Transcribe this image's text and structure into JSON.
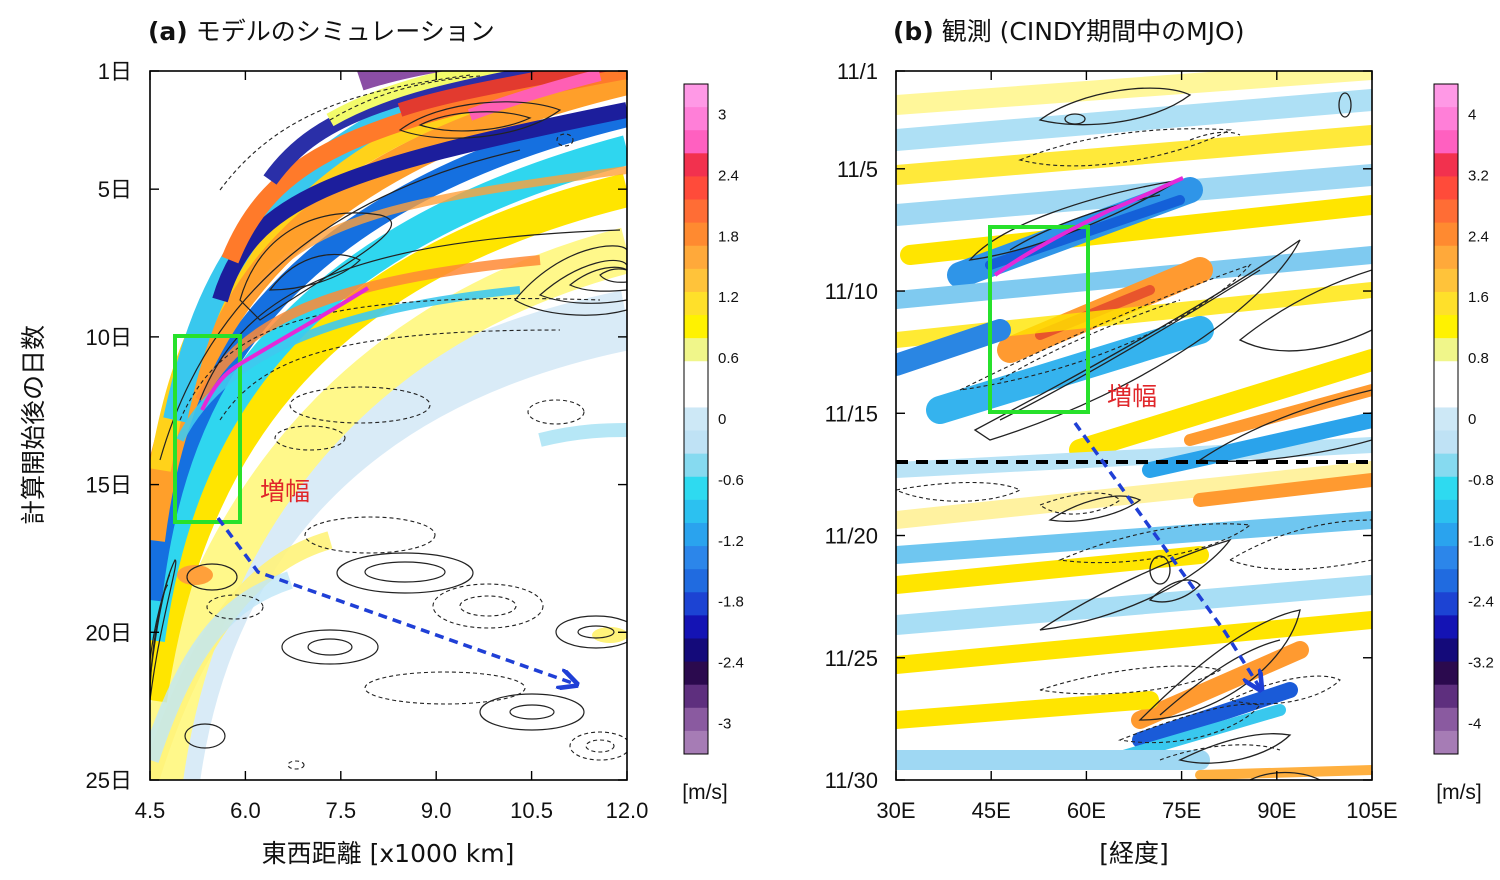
{
  "chart_data": [
    {
      "type": "heatmap",
      "panel": "(a)",
      "title": "モデルのシミュレーション",
      "xlabel": "東西距離 [x1000 km]",
      "ylabel": "計算開始後の日数",
      "xlim": [
        4.5,
        12.0
      ],
      "ylim": [
        1,
        25
      ],
      "x_ticks": [
        "4.5",
        "6.0",
        "7.5",
        "9.0",
        "10.5",
        "12.0"
      ],
      "x_tick_values": [
        4.5,
        6.0,
        7.5,
        9.0,
        10.5,
        12.0
      ],
      "y_ticks": [
        "1日",
        "5日",
        "10日",
        "15日",
        "20日",
        "25日"
      ],
      "y_tick_values": [
        1,
        5,
        10,
        15,
        20,
        25
      ],
      "colorbar": {
        "unit": "[m/s]",
        "range": [
          -3.3,
          3.3
        ],
        "tick_labels": [
          "3",
          "2.4",
          "1.8",
          "1.2",
          "0.6",
          "0",
          "-0.6",
          "-1.2",
          "-1.8",
          "-2.4",
          "-3"
        ],
        "tick_values": [
          3,
          2.4,
          1.8,
          1.2,
          0.6,
          0,
          -0.6,
          -1.2,
          -1.8,
          -2.4,
          -3
        ]
      },
      "annotation": "増幅",
      "amplification_box": {
        "x": [
          4.9,
          5.95
        ],
        "y": [
          10,
          16.2
        ]
      },
      "magenta_line": [
        [
          5.35,
          12.6
        ],
        [
          5.75,
          11.3
        ],
        [
          6.9,
          9.8
        ],
        [
          7.95,
          8.5
        ]
      ],
      "arrow": [
        [
          5.95,
          16.1
        ],
        [
          6.35,
          18.2
        ],
        [
          11.4,
          21.7
        ]
      ]
    },
    {
      "type": "heatmap",
      "panel": "(b)",
      "title": "観測 (CINDY期間中のMJO)",
      "xlabel": "[経度]",
      "ylabel": "",
      "xlim": [
        30,
        105
      ],
      "ylim": [
        1,
        30
      ],
      "x_ticks": [
        "30E",
        "45E",
        "60E",
        "75E",
        "90E",
        "105E"
      ],
      "x_tick_values": [
        30,
        45,
        60,
        75,
        90,
        105
      ],
      "y_ticks": [
        "11/1",
        "11/5",
        "11/10",
        "11/15",
        "11/20",
        "11/25",
        "11/30"
      ],
      "y_tick_values": [
        1,
        5,
        10,
        15,
        20,
        25,
        30
      ],
      "colorbar": {
        "unit": "[m/s]",
        "range": [
          -4.4,
          4.4
        ],
        "tick_labels": [
          "4",
          "3.2",
          "2.4",
          "1.6",
          "0.8",
          "0",
          "-0.8",
          "-1.6",
          "-2.4",
          "-3.2",
          "-4"
        ],
        "tick_values": [
          4,
          3.2,
          2.4,
          1.6,
          0.8,
          0,
          -0.8,
          -1.6,
          -2.4,
          -3.2,
          -4
        ]
      },
      "annotation": "増幅",
      "amplification_box": {
        "x": [
          44.5,
          60
        ],
        "y": [
          7.5,
          15
        ]
      },
      "magenta_line": [
        [
          45,
          10
        ],
        [
          50,
          8.6
        ],
        [
          60,
          7.3
        ],
        [
          75,
          5.5
        ]
      ],
      "arrow": [
        [
          57,
          15.5
        ],
        [
          84.5,
          23.3
        ],
        [
          88.5,
          26.2
        ]
      ],
      "divider_day": 17
    }
  ]
}
